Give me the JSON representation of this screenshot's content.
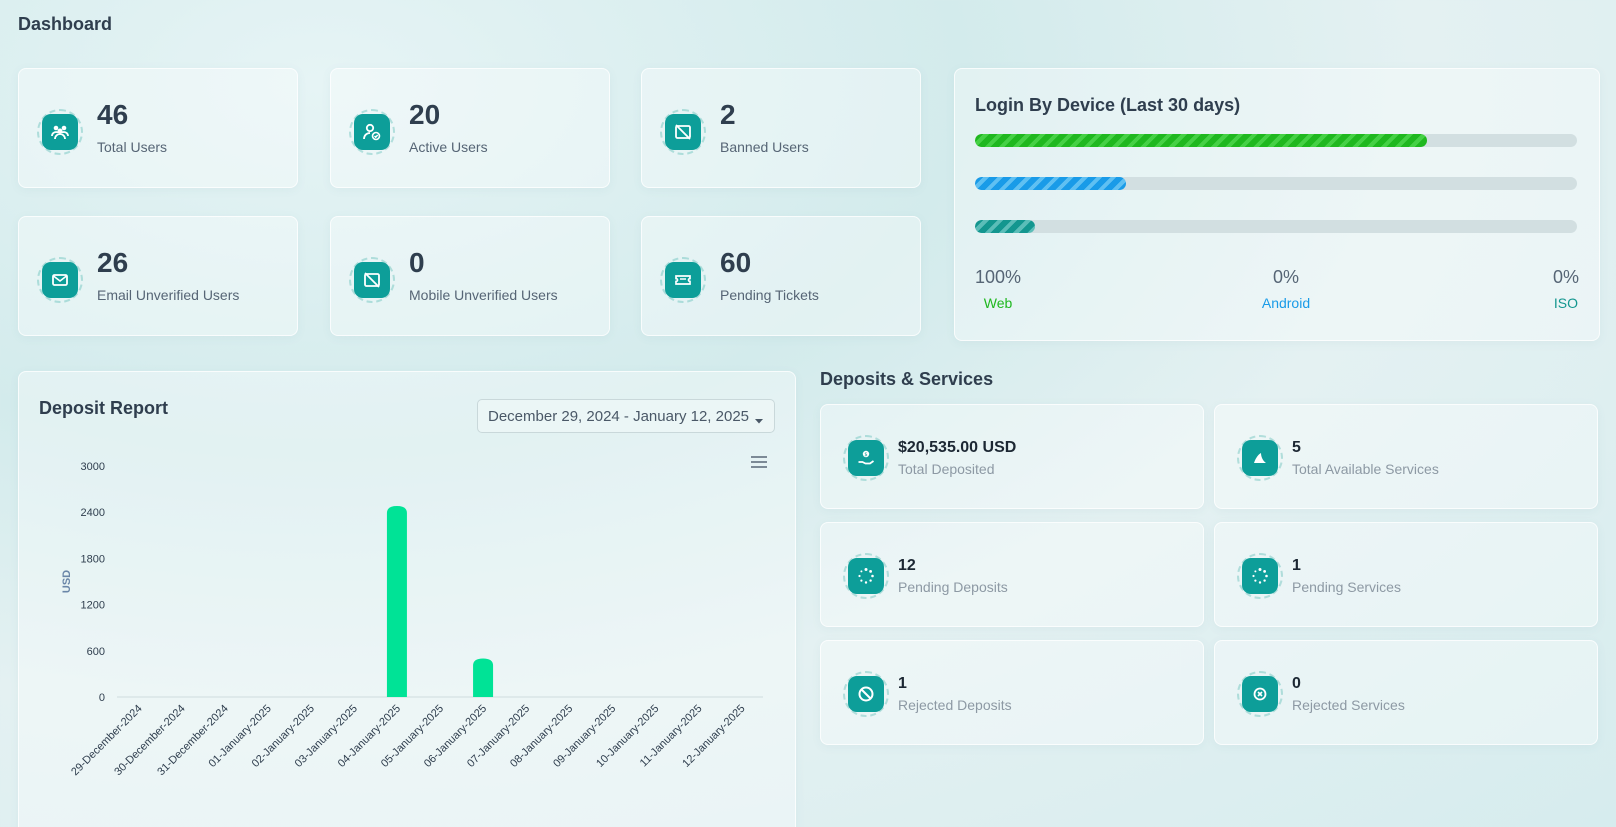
{
  "page": {
    "title": "Dashboard"
  },
  "stats": [
    {
      "value": "46",
      "label": "Total Users",
      "icon": "users-icon"
    },
    {
      "value": "20",
      "label": "Active Users",
      "icon": "user-check-icon"
    },
    {
      "value": "2",
      "label": "Banned Users",
      "icon": "ban-screen-icon"
    },
    {
      "value": "26",
      "label": "Email Unverified Users",
      "icon": "envelope-icon"
    },
    {
      "value": "0",
      "label": "Mobile Unverified Users",
      "icon": "mobile-off-icon"
    },
    {
      "value": "60",
      "label": "Pending Tickets",
      "icon": "ticket-icon"
    }
  ],
  "login_device": {
    "title": "Login By Device (Last 30 days)",
    "devices": [
      {
        "name": "Web",
        "percent_label": "100%",
        "bar_fill": 0.75,
        "color": "#1fb81f"
      },
      {
        "name": "Android",
        "percent_label": "0%",
        "bar_fill": 0.25,
        "color": "#199be8"
      },
      {
        "name": "ISO",
        "percent_label": "0%",
        "bar_fill": 0.1,
        "color": "#13968f"
      }
    ]
  },
  "deposit_report": {
    "title": "Deposit Report",
    "date_range": "December 29, 2024 - January 12, 2025"
  },
  "chart_data": {
    "type": "bar",
    "title": "",
    "xlabel": "",
    "ylabel": "USD",
    "ylim": [
      0,
      3000
    ],
    "yticks": [
      "0",
      "600",
      "1200",
      "1800",
      "2400",
      "3000"
    ],
    "categories": [
      "29-December-2024",
      "30-December-2024",
      "31-December-2024",
      "01-January-2025",
      "02-January-2025",
      "03-January-2025",
      "04-January-2025",
      "05-January-2025",
      "06-January-2025",
      "07-January-2025",
      "08-January-2025",
      "09-January-2025",
      "10-January-2025",
      "11-January-2025",
      "12-January-2025"
    ],
    "values": [
      0,
      0,
      0,
      0,
      0,
      0,
      2480,
      0,
      500,
      0,
      0,
      0,
      0,
      0,
      0
    ],
    "bar_color": "#00e396",
    "grid": false
  },
  "deposits_services": {
    "title": "Deposits & Services",
    "items": [
      {
        "value": "$20,535.00 USD",
        "label": "Total Deposited",
        "icon": "hand-dollar-icon"
      },
      {
        "value": "5",
        "label": "Total Available Services",
        "icon": "shark-fin-icon"
      },
      {
        "value": "12",
        "label": "Pending Deposits",
        "icon": "spinner-icon"
      },
      {
        "value": "1",
        "label": "Pending Services",
        "icon": "spinner-icon"
      },
      {
        "value": "1",
        "label": "Rejected Deposits",
        "icon": "ban-icon"
      },
      {
        "value": "0",
        "label": "Rejected Services",
        "icon": "x-circle-icon"
      }
    ]
  }
}
